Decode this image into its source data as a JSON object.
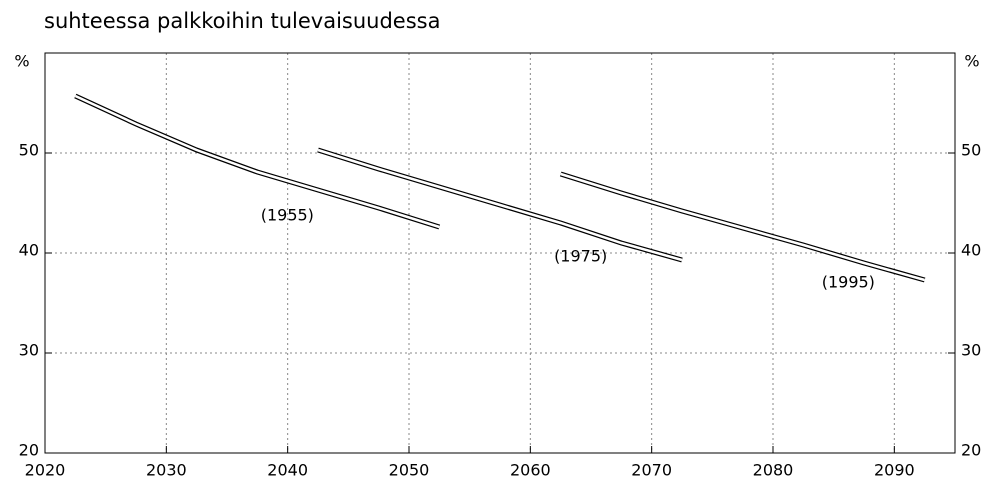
{
  "chart_data": {
    "type": "line",
    "title": "suhteessa palkkoihin tulevaisuudessa",
    "y_unit": "%",
    "xlim": [
      2020,
      2095
    ],
    "xticks": [
      2020,
      2030,
      2040,
      2050,
      2060,
      2070,
      2080,
      2090
    ],
    "ylim": [
      20,
      60
    ],
    "yticks": [
      20,
      30,
      40,
      50
    ],
    "grid": true,
    "series": [
      {
        "name": "(1955)",
        "color": "#000000",
        "x": [
          2022.5,
          2027.5,
          2032.5,
          2037.5,
          2042.5,
          2047.5,
          2052.5
        ],
        "values": [
          55.7,
          52.9,
          50.3,
          48.1,
          46.3,
          44.5,
          42.6
        ]
      },
      {
        "name": "(1975)",
        "color": "#000000",
        "x": [
          2042.5,
          2047.5,
          2052.5,
          2057.5,
          2062.5,
          2067.5,
          2072.5
        ],
        "values": [
          50.3,
          48.4,
          46.6,
          44.8,
          43.0,
          41.0,
          39.3
        ]
      },
      {
        "name": "(1995)",
        "color": "#000000",
        "x": [
          2062.5,
          2067.5,
          2072.5,
          2077.5,
          2082.5,
          2087.5,
          2092.5
        ],
        "values": [
          47.9,
          46.0,
          44.2,
          42.5,
          40.8,
          39.0,
          37.3
        ]
      }
    ]
  }
}
